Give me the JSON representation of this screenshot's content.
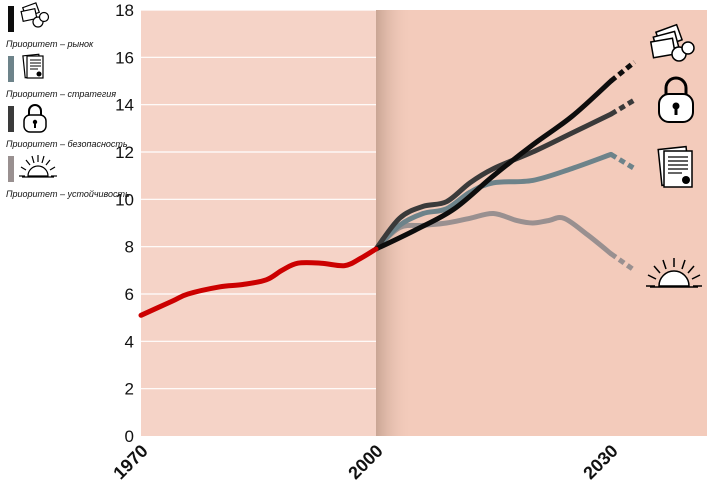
{
  "chart_data": {
    "type": "line",
    "ylim": [
      0,
      18
    ],
    "xlim": [
      1970,
      2045
    ],
    "y_ticks": [
      0,
      2,
      4,
      6,
      8,
      10,
      12,
      14,
      16,
      18
    ],
    "x_tick_labels": [
      "1970",
      "2000",
      "2030"
    ],
    "grid": "horizontal",
    "legend_position": "top-left",
    "projection_start": 2000,
    "historical": {
      "color": "#cc0000",
      "x": [
        1970,
        1974,
        1976,
        1980,
        1983,
        1986,
        1988,
        1990,
        1993,
        1996,
        1998,
        2000
      ],
      "y": [
        5.1,
        5.7,
        6.0,
        6.3,
        6.4,
        6.6,
        7.0,
        7.3,
        7.3,
        7.2,
        7.5,
        7.9
      ]
    },
    "series": [
      {
        "name": "Приоритет – рынок",
        "color": "#0d0d0d",
        "icon": "cash-and-coins-icon",
        "x": [
          2000,
          2005,
          2010,
          2015,
          2020,
          2025,
          2030
        ],
        "y": [
          7.9,
          8.7,
          9.6,
          11.0,
          12.3,
          13.5,
          15.0
        ],
        "dashed_x": [
          2030,
          2033
        ],
        "dashed_y": [
          15.0,
          15.8
        ]
      },
      {
        "name": "Приоритет – стратегия",
        "color": "#6d838a",
        "icon": "document-with-seal-icon",
        "x": [
          2000,
          2003,
          2006,
          2009,
          2012,
          2015,
          2020,
          2025,
          2030
        ],
        "y": [
          7.9,
          8.9,
          9.4,
          9.6,
          10.3,
          10.7,
          10.8,
          11.3,
          11.9
        ],
        "dashed_x": [
          2030,
          2033
        ],
        "dashed_y": [
          11.9,
          11.3
        ]
      },
      {
        "name": "Приоритет – безопасность",
        "color": "#3a3a3a",
        "icon": "padlock-icon",
        "x": [
          2000,
          2003,
          2006,
          2009,
          2012,
          2015,
          2020,
          2025,
          2030
        ],
        "y": [
          7.9,
          9.2,
          9.7,
          9.9,
          10.7,
          11.3,
          12.0,
          12.8,
          13.6
        ],
        "dashed_x": [
          2030,
          2033
        ],
        "dashed_y": [
          13.6,
          14.2
        ]
      },
      {
        "name": "Приоритет – устойчивость",
        "color": "#999090",
        "icon": "rising-sun-icon",
        "x": [
          2000,
          2003,
          2006,
          2009,
          2012,
          2015,
          2018,
          2020,
          2022,
          2024,
          2027,
          2030
        ],
        "y": [
          7.9,
          8.8,
          8.9,
          9.0,
          9.2,
          9.4,
          9.1,
          9.0,
          9.1,
          9.2,
          8.5,
          7.7
        ],
        "dashed_x": [
          2030,
          2033
        ],
        "dashed_y": [
          7.7,
          7.0
        ]
      }
    ]
  }
}
